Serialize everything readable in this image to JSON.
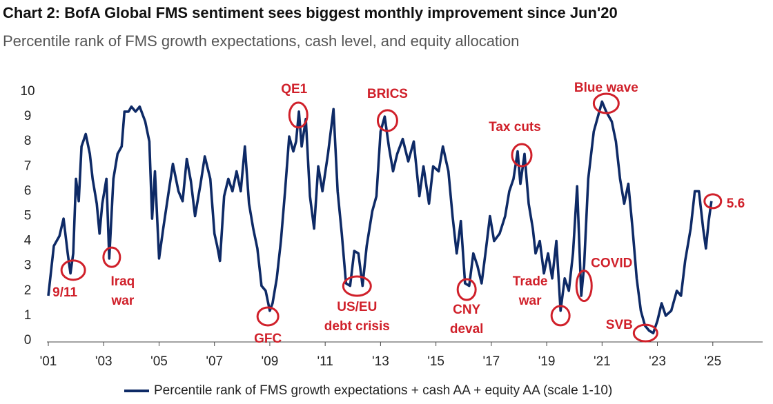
{
  "chart_data": {
    "type": "line",
    "title": "Chart 2: BofA Global FMS sentiment sees biggest monthly improvement since Jun'20",
    "subtitle": "Percentile rank of FMS growth expectations, cash level, and equity allocation",
    "xlim": [
      2000.95,
      2026.8
    ],
    "xticks": [
      {
        "value": 2001,
        "label": "'01"
      },
      {
        "value": 2003,
        "label": "'03"
      },
      {
        "value": 2005,
        "label": "'05"
      },
      {
        "value": 2007,
        "label": "'07"
      },
      {
        "value": 2009,
        "label": "'09"
      },
      {
        "value": 2011,
        "label": "'11"
      },
      {
        "value": 2013,
        "label": "'13"
      },
      {
        "value": 2015,
        "label": "'15"
      },
      {
        "value": 2017,
        "label": "'17"
      },
      {
        "value": 2019,
        "label": "'19"
      },
      {
        "value": 2021,
        "label": "'21"
      },
      {
        "value": 2023,
        "label": "'23"
      },
      {
        "value": 2025,
        "label": "'25"
      }
    ],
    "ylim": [
      0,
      10
    ],
    "yticks": [
      0,
      1,
      2,
      3,
      4,
      5,
      6,
      7,
      8,
      9,
      10
    ],
    "legend": "bottom",
    "x": [
      2001.0,
      2001.2,
      2001.4,
      2001.55,
      2001.7,
      2001.8,
      2001.9,
      2002.0,
      2002.1,
      2002.2,
      2002.35,
      2002.5,
      2002.6,
      2002.75,
      2002.85,
      2002.95,
      2003.1,
      2003.2,
      2003.35,
      2003.5,
      2003.65,
      2003.75,
      2003.9,
      2004.0,
      2004.15,
      2004.3,
      2004.5,
      2004.65,
      2004.75,
      2004.85,
      2005.0,
      2005.15,
      2005.35,
      2005.5,
      2005.7,
      2005.85,
      2006.0,
      2006.15,
      2006.3,
      2006.5,
      2006.65,
      2006.85,
      2007.0,
      2007.1,
      2007.2,
      2007.35,
      2007.5,
      2007.65,
      2007.8,
      2007.95,
      2008.1,
      2008.25,
      2008.4,
      2008.55,
      2008.7,
      2008.85,
      2009.0,
      2009.1,
      2009.25,
      2009.4,
      2009.55,
      2009.7,
      2009.85,
      2009.95,
      2010.05,
      2010.15,
      2010.3,
      2010.45,
      2010.6,
      2010.75,
      2010.9,
      2011.1,
      2011.3,
      2011.45,
      2011.6,
      2011.75,
      2011.9,
      2012.05,
      2012.2,
      2012.35,
      2012.5,
      2012.7,
      2012.85,
      2013.0,
      2013.15,
      2013.3,
      2013.45,
      2013.6,
      2013.8,
      2014.0,
      2014.2,
      2014.4,
      2014.55,
      2014.75,
      2014.9,
      2015.1,
      2015.25,
      2015.45,
      2015.6,
      2015.75,
      2015.9,
      2016.05,
      2016.2,
      2016.35,
      2016.5,
      2016.65,
      2016.8,
      2016.95,
      2017.1,
      2017.3,
      2017.5,
      2017.65,
      2017.8,
      2017.95,
      2018.05,
      2018.2,
      2018.35,
      2018.5,
      2018.6,
      2018.75,
      2018.9,
      2019.05,
      2019.2,
      2019.35,
      2019.5,
      2019.65,
      2019.8,
      2019.95,
      2020.1,
      2020.25,
      2020.35,
      2020.5,
      2020.7,
      2020.85,
      2021.0,
      2021.15,
      2021.35,
      2021.5,
      2021.65,
      2021.8,
      2021.95,
      2022.1,
      2022.25,
      2022.4,
      2022.55,
      2022.7,
      2022.85,
      2023.0,
      2023.15,
      2023.3,
      2023.5,
      2023.7,
      2023.85,
      2024.0,
      2024.2,
      2024.35,
      2024.5,
      2024.65,
      2024.75,
      2024.85,
      2024.95
    ],
    "series": [
      {
        "name": "Percentile rank of FMS growth expectations + cash AA + equity AA (scale 1-10)",
        "color": "#0e2a66",
        "values": [
          1.8,
          3.8,
          4.2,
          4.9,
          3.5,
          2.7,
          3.5,
          6.5,
          5.6,
          7.8,
          8.3,
          7.5,
          6.5,
          5.5,
          4.3,
          5.5,
          6.5,
          3.3,
          6.5,
          7.5,
          7.8,
          9.2,
          9.2,
          9.4,
          9.2,
          9.4,
          8.8,
          8.0,
          4.9,
          6.8,
          3.3,
          4.5,
          6.0,
          7.1,
          6.0,
          5.6,
          7.3,
          6.4,
          5.0,
          6.3,
          7.4,
          6.5,
          4.3,
          3.8,
          3.2,
          5.8,
          6.5,
          6.0,
          6.8,
          6.0,
          7.8,
          5.5,
          4.5,
          3.7,
          2.2,
          2.0,
          1.2,
          1.5,
          2.5,
          4.0,
          6.0,
          8.2,
          7.6,
          8.0,
          9.2,
          7.8,
          8.9,
          5.8,
          4.5,
          7.0,
          6.0,
          7.5,
          9.3,
          6.0,
          4.3,
          2.3,
          2.2,
          3.6,
          3.5,
          2.2,
          3.8,
          5.2,
          5.8,
          8.4,
          9.0,
          7.8,
          6.8,
          7.5,
          8.1,
          7.2,
          8.0,
          5.8,
          7.0,
          5.5,
          7.0,
          6.8,
          7.8,
          6.8,
          5.0,
          3.5,
          4.8,
          2.3,
          2.2,
          3.5,
          3.0,
          2.3,
          3.6,
          5.0,
          4.0,
          4.3,
          5.0,
          6.0,
          6.5,
          7.6,
          6.3,
          7.5,
          5.5,
          4.5,
          3.5,
          4.0,
          2.7,
          3.5,
          2.5,
          4.0,
          1.2,
          2.5,
          2.0,
          3.5,
          6.2,
          1.8,
          3.0,
          6.5,
          8.4,
          9.0,
          9.6,
          9.2,
          8.8,
          8.0,
          6.5,
          5.5,
          6.3,
          4.5,
          2.5,
          1.2,
          0.6,
          0.4,
          0.3,
          0.8,
          1.5,
          1.0,
          1.2,
          2.0,
          1.8,
          3.2,
          4.5,
          6.0,
          6.0,
          4.5,
          3.7,
          4.8,
          5.6
        ]
      }
    ],
    "annotations": [
      {
        "text": [
          "9/11"
        ],
        "x": 2001.9,
        "y": 2.83
      },
      {
        "text": [
          "Iraq",
          "war"
        ],
        "x": 2003.29,
        "y": 3.35
      },
      {
        "text": [
          "GFC"
        ],
        "x": 2008.93,
        "y": 0.97
      },
      {
        "text": [
          "QE1"
        ],
        "x": 2010.03,
        "y": 9.06
      },
      {
        "text": [
          "US/EU",
          "debt crisis"
        ],
        "x": 2012.15,
        "y": 2.19
      },
      {
        "text": [
          "BRICS"
        ],
        "x": 2013.25,
        "y": 8.84
      },
      {
        "text": [
          "CNY",
          "deval"
        ],
        "x": 2016.11,
        "y": 2.05
      },
      {
        "text": [
          "Tax cuts"
        ],
        "x": 2018.1,
        "y": 7.45
      },
      {
        "text": [
          "Trade",
          "war"
        ],
        "x": 2019.5,
        "y": 1.0
      },
      {
        "text": [
          "COVID"
        ],
        "x": 2020.35,
        "y": 2.2
      },
      {
        "text": [
          "Blue wave"
        ],
        "x": 2021.15,
        "y": 9.53
      },
      {
        "text": [
          "SVB"
        ],
        "x": 2022.57,
        "y": 0.3
      },
      {
        "text": [
          "5.6"
        ],
        "x": 2025.0,
        "y": 5.6
      }
    ]
  }
}
